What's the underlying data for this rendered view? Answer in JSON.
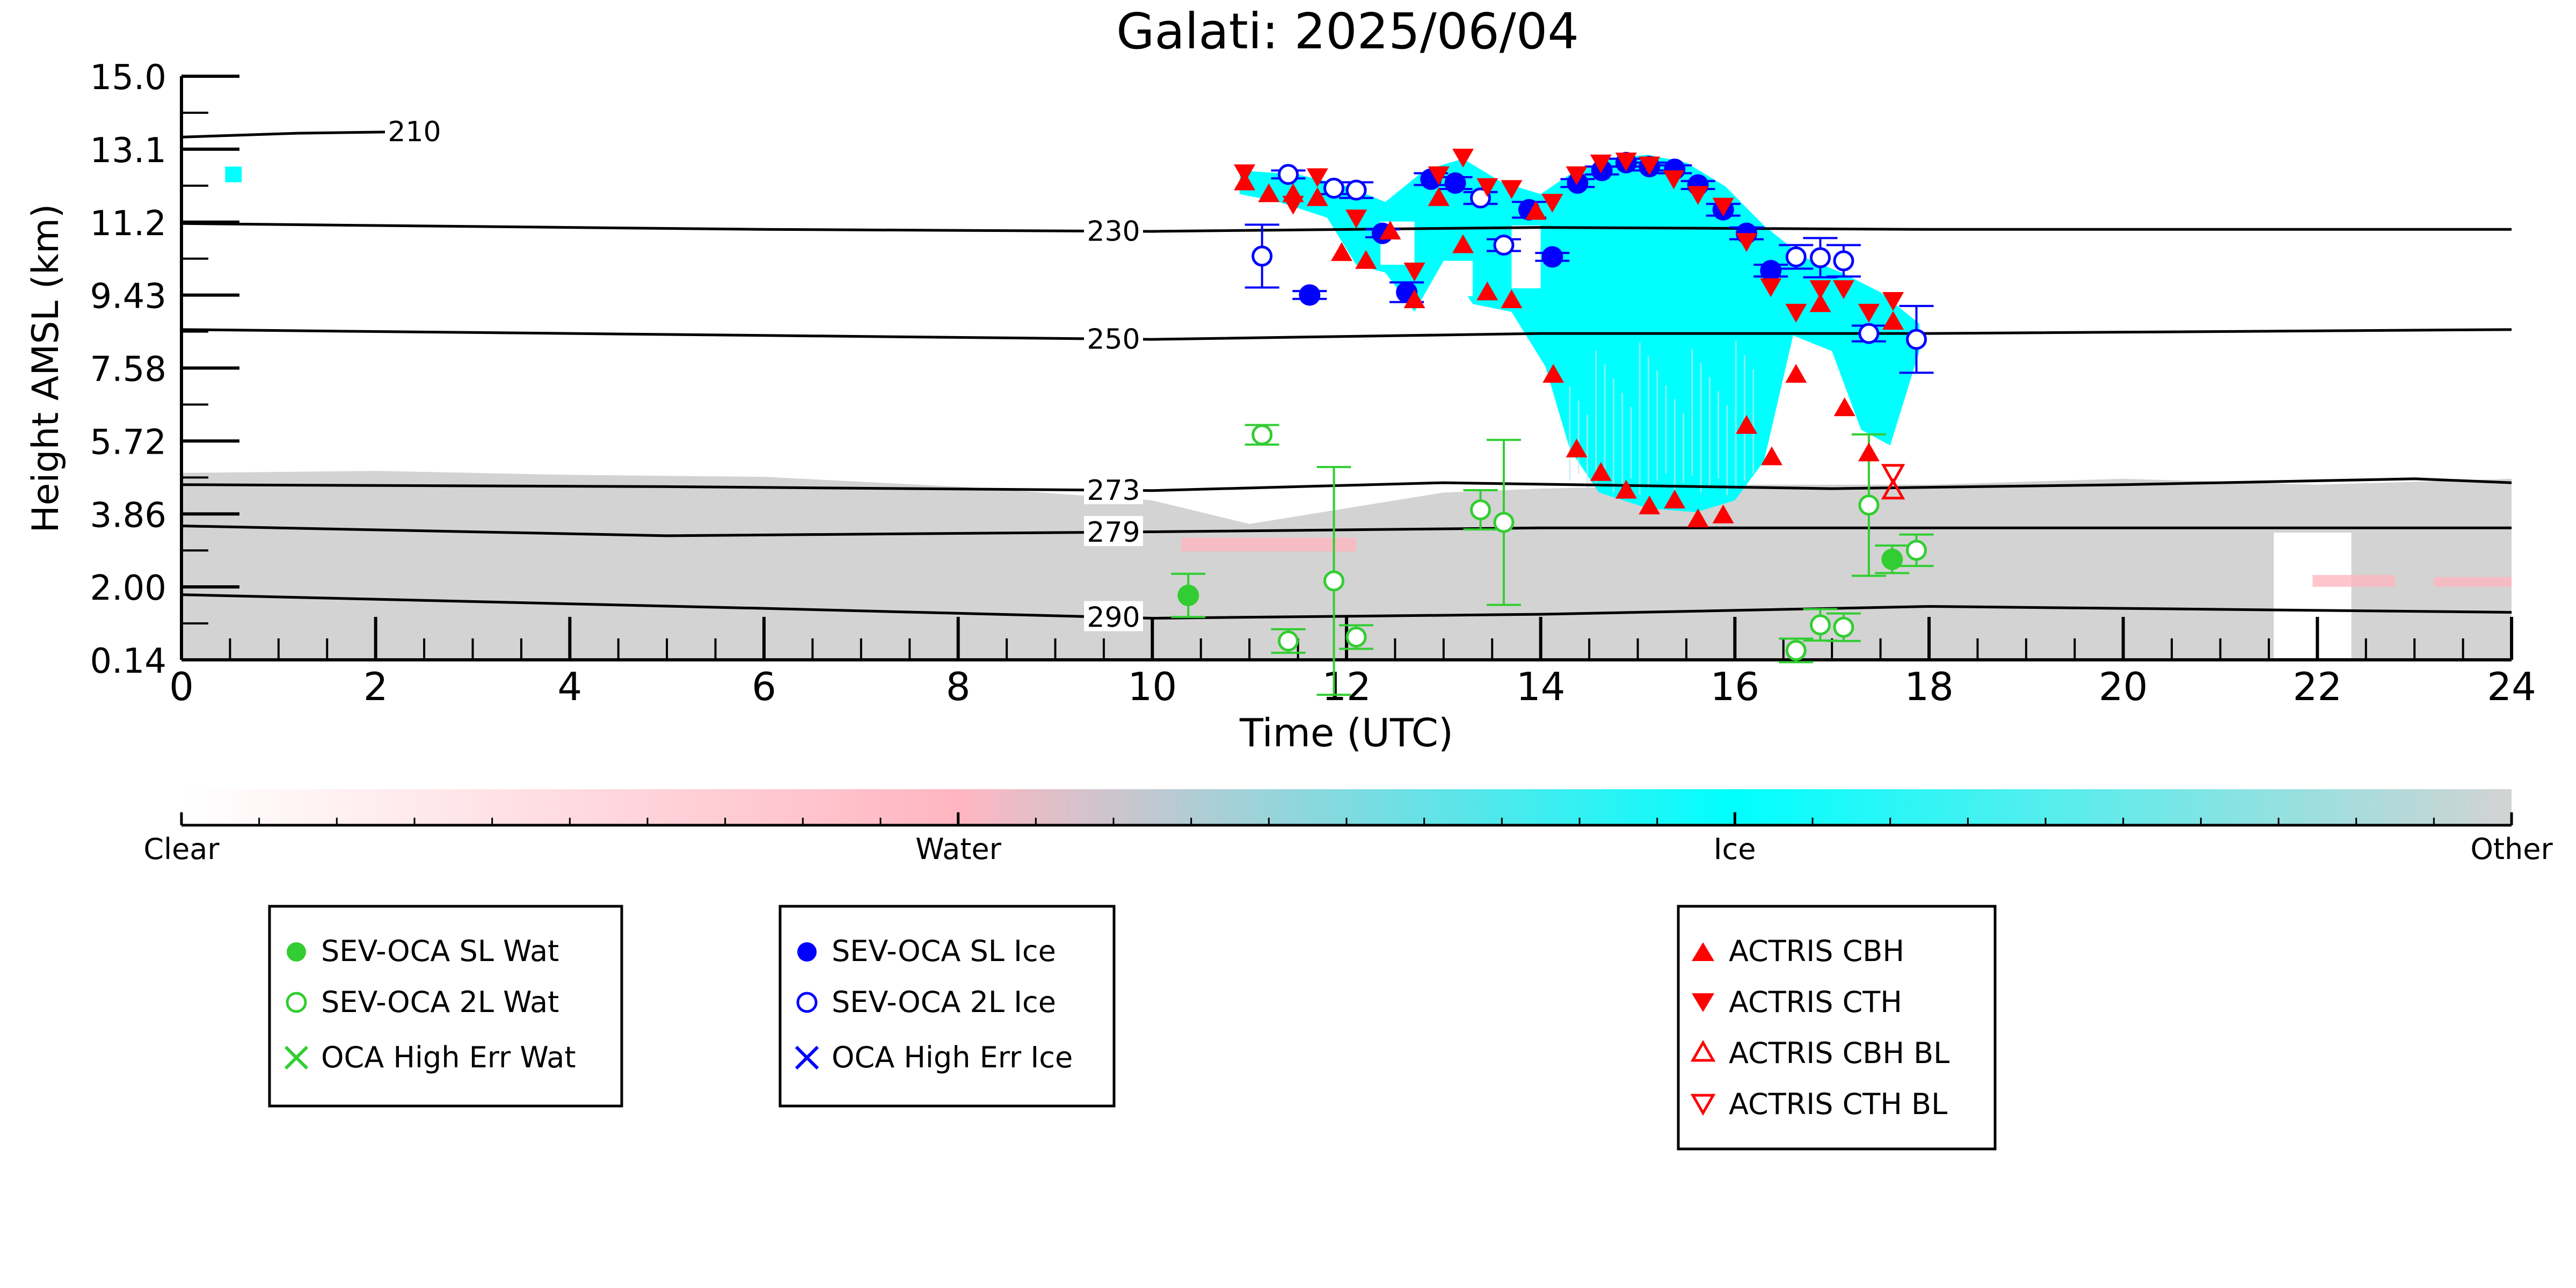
{
  "chart_data": {
    "type": "scatter",
    "title": "Galati: 2025/06/04",
    "xlabel": "Time (UTC)",
    "ylabel": "Height AMSL (km)",
    "xlim": [
      0,
      24
    ],
    "ylim": [
      0.14,
      15.0
    ],
    "x_ticks": [
      "0",
      "2",
      "4",
      "6",
      "8",
      "10",
      "12",
      "14",
      "16",
      "18",
      "20",
      "22",
      "24"
    ],
    "y_ticks": [
      "0.14",
      "2.00",
      "3.86",
      "5.72",
      "7.58",
      "9.43",
      "11.2",
      "13.1",
      "15.0"
    ],
    "colors": {
      "water": "#ffb6c1",
      "ice": "#00ffff",
      "other": "#d3d3d3",
      "sev_wat": "#32cd32",
      "sev_ice": "#0000ff",
      "actris": "#ff0000"
    },
    "colorbar": {
      "labels": [
        "Clear",
        "Water",
        "Ice",
        "Other"
      ]
    },
    "isotherms": [
      {
        "label": "210",
        "label_x": 2.4,
        "points": [
          [
            0,
            13.45
          ],
          [
            1.2,
            13.55
          ],
          [
            2.7,
            13.6
          ]
        ]
      },
      {
        "label": "230",
        "label_x": 9.6,
        "points": [
          [
            0,
            11.25
          ],
          [
            6,
            11.1
          ],
          [
            10,
            11.05
          ],
          [
            14,
            11.15
          ],
          [
            18,
            11.1
          ],
          [
            24,
            11.1
          ]
        ]
      },
      {
        "label": "250",
        "label_x": 9.6,
        "points": [
          [
            0,
            8.55
          ],
          [
            6,
            8.4
          ],
          [
            10,
            8.3
          ],
          [
            14,
            8.45
          ],
          [
            18,
            8.45
          ],
          [
            24,
            8.55
          ]
        ]
      },
      {
        "label": "273",
        "label_x": 9.6,
        "points": [
          [
            0,
            4.6
          ],
          [
            5,
            4.55
          ],
          [
            10,
            4.45
          ],
          [
            13,
            4.65
          ],
          [
            17,
            4.5
          ],
          [
            20,
            4.6
          ],
          [
            23,
            4.75
          ],
          [
            24,
            4.65
          ]
        ]
      },
      {
        "label": "279",
        "label_x": 9.6,
        "points": [
          [
            0,
            3.55
          ],
          [
            5,
            3.3
          ],
          [
            10,
            3.4
          ],
          [
            14,
            3.5
          ],
          [
            19,
            3.5
          ],
          [
            24,
            3.5
          ]
        ]
      },
      {
        "label": "290",
        "label_x": 9.6,
        "points": [
          [
            0,
            1.8
          ],
          [
            6,
            1.45
          ],
          [
            10,
            1.2
          ],
          [
            14,
            1.3
          ],
          [
            18,
            1.5
          ],
          [
            24,
            1.35
          ]
        ]
      }
    ],
    "series": [
      {
        "name": "SEV-OCA SL Wat",
        "marker": "filled-circle",
        "color": "#32cd32",
        "points": [
          {
            "x": 10.37,
            "y": 1.78,
            "err": 0.55
          },
          {
            "x": 17.62,
            "y": 2.7,
            "err": 0.35
          }
        ]
      },
      {
        "name": "SEV-OCA 2L Wat",
        "marker": "open-circle",
        "color": "#32cd32",
        "points": [
          {
            "x": 11.13,
            "y": 5.87,
            "err": 0.25
          },
          {
            "x": 11.4,
            "y": 0.62,
            "err": 0.3
          },
          {
            "x": 11.87,
            "y": 2.15,
            "err": 2.9
          },
          {
            "x": 12.1,
            "y": 0.72,
            "err": 0.3
          },
          {
            "x": 13.38,
            "y": 3.96,
            "err": 0.5
          },
          {
            "x": 13.62,
            "y": 3.64,
            "err": 2.1
          },
          {
            "x": 16.63,
            "y": 0.38,
            "err": 0.3
          },
          {
            "x": 16.88,
            "y": 1.03,
            "err": 0.4
          },
          {
            "x": 17.12,
            "y": 0.97,
            "err": 0.35
          },
          {
            "x": 17.38,
            "y": 4.08,
            "err": 1.8
          },
          {
            "x": 17.87,
            "y": 2.93,
            "err": 0.4
          }
        ]
      },
      {
        "name": "OCA High Err Wat",
        "marker": "x",
        "color": "#32cd32",
        "points": []
      },
      {
        "name": "SEV-OCA SL Ice",
        "marker": "filled-circle",
        "color": "#0000ff",
        "points": [
          {
            "x": 11.62,
            "y": 9.43,
            "err": 0.1
          },
          {
            "x": 12.37,
            "y": 11.0,
            "err": 0.1
          },
          {
            "x": 12.62,
            "y": 9.5,
            "err": 0.25
          },
          {
            "x": 12.87,
            "y": 12.38,
            "err": 0.15
          },
          {
            "x": 13.12,
            "y": 12.28,
            "err": 0.15
          },
          {
            "x": 13.88,
            "y": 11.6,
            "err": 0.2
          },
          {
            "x": 14.12,
            "y": 10.4,
            "err": 0.1
          },
          {
            "x": 14.38,
            "y": 12.28,
            "err": 0.1
          },
          {
            "x": 14.63,
            "y": 12.6,
            "err": 0.1
          },
          {
            "x": 14.88,
            "y": 12.8,
            "err": 0.1
          },
          {
            "x": 15.12,
            "y": 12.7,
            "err": 0.1
          },
          {
            "x": 15.38,
            "y": 12.63,
            "err": 0.1
          },
          {
            "x": 15.62,
            "y": 12.23,
            "err": 0.1
          },
          {
            "x": 15.88,
            "y": 11.6,
            "err": 0.15
          },
          {
            "x": 16.12,
            "y": 11.0,
            "err": 0.15
          },
          {
            "x": 16.37,
            "y": 10.05,
            "err": 0.15
          }
        ]
      },
      {
        "name": "SEV-OCA 2L Ice",
        "marker": "open-circle",
        "color": "#0000ff",
        "points": [
          {
            "x": 11.13,
            "y": 10.42,
            "err": 0.8
          },
          {
            "x": 11.4,
            "y": 12.5,
            "err": 0.1
          },
          {
            "x": 11.87,
            "y": 12.15,
            "err": 0.15
          },
          {
            "x": 12.1,
            "y": 12.1,
            "err": 0.2
          },
          {
            "x": 13.38,
            "y": 11.9,
            "err": 0.15
          },
          {
            "x": 13.62,
            "y": 10.7,
            "err": 0.15
          },
          {
            "x": 16.63,
            "y": 10.4,
            "err": 0.3
          },
          {
            "x": 16.88,
            "y": 10.38,
            "err": 0.5
          },
          {
            "x": 17.12,
            "y": 10.3,
            "err": 0.4
          },
          {
            "x": 17.38,
            "y": 8.45,
            "err": 0.2
          },
          {
            "x": 17.87,
            "y": 8.3,
            "err": 0.85
          }
        ]
      },
      {
        "name": "OCA High Err Ice",
        "marker": "x",
        "color": "#0000ff",
        "points": []
      },
      {
        "name": "ACTRIS CBH",
        "marker": "triangle-up",
        "color": "#ff0000",
        "points": [
          {
            "x": 10.95,
            "y": 12.3
          },
          {
            "x": 11.2,
            "y": 12.0
          },
          {
            "x": 11.45,
            "y": 12.0
          },
          {
            "x": 11.7,
            "y": 11.9
          },
          {
            "x": 11.95,
            "y": 10.5
          },
          {
            "x": 12.2,
            "y": 10.3
          },
          {
            "x": 12.45,
            "y": 11.05
          },
          {
            "x": 12.7,
            "y": 9.3
          },
          {
            "x": 12.95,
            "y": 11.9
          },
          {
            "x": 13.2,
            "y": 10.7
          },
          {
            "x": 13.45,
            "y": 9.5
          },
          {
            "x": 13.7,
            "y": 9.3
          },
          {
            "x": 13.95,
            "y": 11.55
          },
          {
            "x": 14.13,
            "y": 7.4
          },
          {
            "x": 14.37,
            "y": 5.5
          },
          {
            "x": 14.62,
            "y": 4.9
          },
          {
            "x": 14.88,
            "y": 4.45
          },
          {
            "x": 15.12,
            "y": 4.05
          },
          {
            "x": 15.38,
            "y": 4.2
          },
          {
            "x": 15.62,
            "y": 3.72
          },
          {
            "x": 15.88,
            "y": 3.82
          },
          {
            "x": 16.12,
            "y": 6.1
          },
          {
            "x": 16.38,
            "y": 5.3
          },
          {
            "x": 16.63,
            "y": 7.4
          },
          {
            "x": 16.88,
            "y": 9.2
          },
          {
            "x": 17.13,
            "y": 6.55
          },
          {
            "x": 17.38,
            "y": 5.4
          },
          {
            "x": 17.63,
            "y": 8.75
          }
        ]
      },
      {
        "name": "ACTRIS CTH",
        "marker": "triangle-down",
        "color": "#ff0000",
        "points": [
          {
            "x": 10.95,
            "y": 12.55
          },
          {
            "x": 11.45,
            "y": 11.75
          },
          {
            "x": 11.7,
            "y": 12.45
          },
          {
            "x": 12.1,
            "y": 11.4
          },
          {
            "x": 12.7,
            "y": 10.05
          },
          {
            "x": 12.95,
            "y": 12.5
          },
          {
            "x": 13.2,
            "y": 12.95
          },
          {
            "x": 13.45,
            "y": 12.2
          },
          {
            "x": 13.7,
            "y": 12.15
          },
          {
            "x": 14.12,
            "y": 11.8
          },
          {
            "x": 14.37,
            "y": 12.5
          },
          {
            "x": 14.62,
            "y": 12.8
          },
          {
            "x": 14.88,
            "y": 12.85
          },
          {
            "x": 15.12,
            "y": 12.75
          },
          {
            "x": 15.37,
            "y": 12.4
          },
          {
            "x": 15.62,
            "y": 12.0
          },
          {
            "x": 15.88,
            "y": 11.7
          },
          {
            "x": 16.12,
            "y": 10.8
          },
          {
            "x": 16.37,
            "y": 9.65
          },
          {
            "x": 16.63,
            "y": 9.0
          },
          {
            "x": 16.88,
            "y": 9.6
          },
          {
            "x": 17.12,
            "y": 9.6
          },
          {
            "x": 17.38,
            "y": 9.0
          },
          {
            "x": 17.63,
            "y": 9.3
          }
        ]
      },
      {
        "name": "ACTRIS CBH BL",
        "marker": "open-triangle-up",
        "color": "#ff0000",
        "points": [
          {
            "x": 17.63,
            "y": 4.45
          }
        ]
      },
      {
        "name": "ACTRIS CTH BL",
        "marker": "open-triangle-down",
        "color": "#ff0000",
        "points": [
          {
            "x": 17.63,
            "y": 4.9
          }
        ]
      }
    ]
  }
}
